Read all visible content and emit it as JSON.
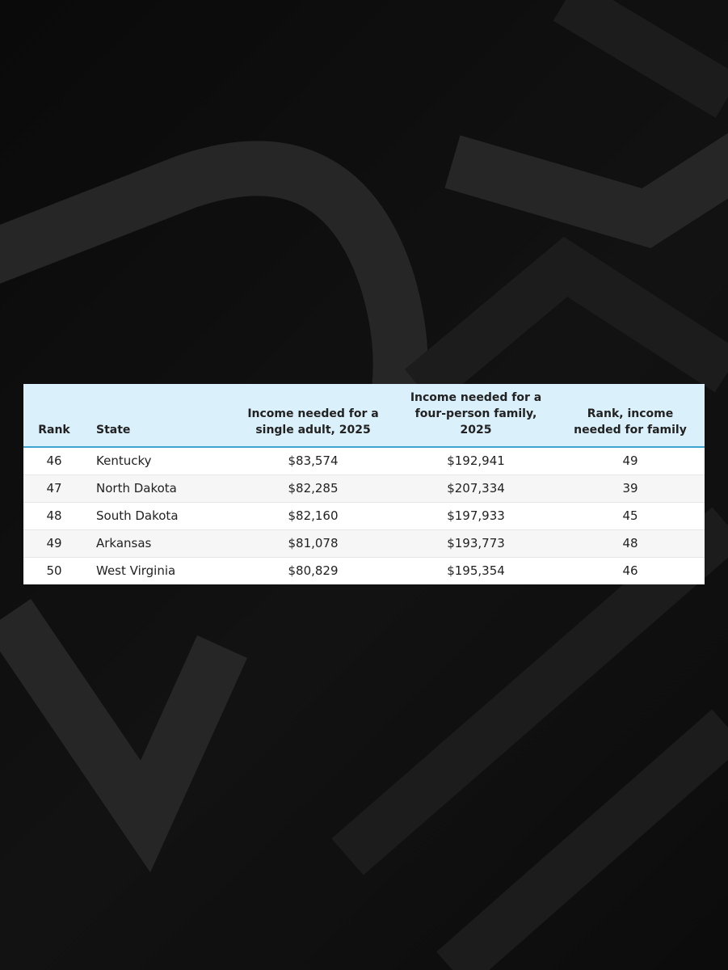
{
  "chart_data": {
    "type": "table",
    "columns": [
      "Rank",
      "State",
      "Income needed for a single adult, 2025",
      "Income needed for a four-person family, 2025",
      "Rank, income needed for family"
    ],
    "rows": [
      [
        "46",
        "Kentucky",
        "$83,574",
        "$192,941",
        "49"
      ],
      [
        "47",
        "North Dakota",
        "$82,285",
        "$207,334",
        "39"
      ],
      [
        "48",
        "South Dakota",
        "$82,160",
        "$197,933",
        "45"
      ],
      [
        "49",
        "Arkansas",
        "$81,078",
        "$193,773",
        "48"
      ],
      [
        "50",
        "West Virginia",
        "$80,829",
        "$195,354",
        "46"
      ]
    ]
  },
  "colors": {
    "header_background": "#daf0fb",
    "header_rule": "#3da3cf",
    "row_alternate": "#f6f6f6",
    "page_background": "#0d0d0d"
  }
}
